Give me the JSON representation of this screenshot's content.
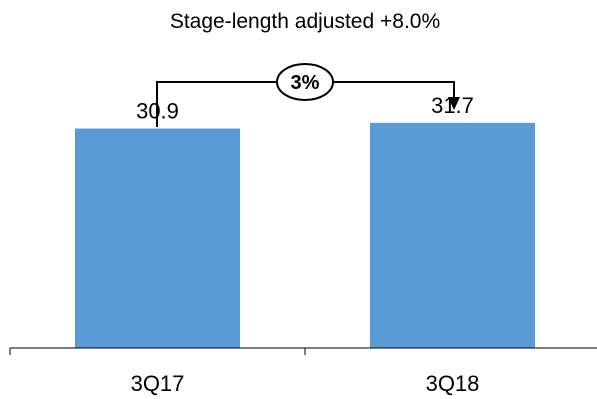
{
  "chart_data": {
    "type": "bar",
    "title": "Stage-length adjusted +8.0%",
    "categories": [
      "3Q17",
      "3Q18"
    ],
    "values": [
      30.9,
      31.7
    ],
    "value_labels": [
      "30.9",
      "31.7"
    ],
    "ylim": [
      0,
      39.7
    ],
    "grid": false,
    "bar_color": "#5b9bd5",
    "annotation": {
      "text": "3%",
      "from": "3Q17",
      "to": "3Q18"
    }
  }
}
